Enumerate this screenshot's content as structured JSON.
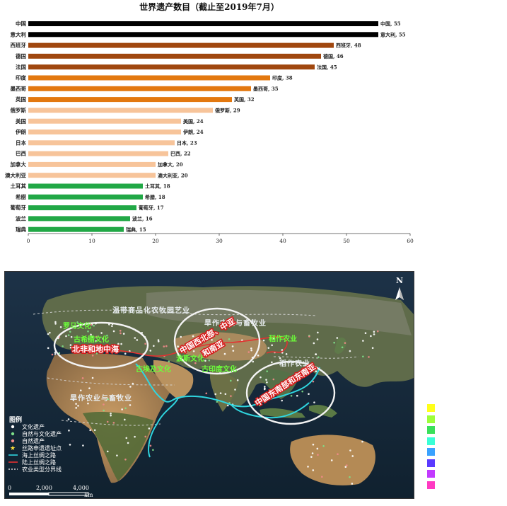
{
  "chart_data": {
    "type": "bar",
    "orientation": "horizontal",
    "title": "世界遗产数目（截止至2019年7月）",
    "categories": [
      "中国",
      "意大利",
      "西班牙",
      "德国",
      "法国",
      "印度",
      "墨西哥",
      "英国",
      "俄罗斯",
      "美国",
      "伊朗",
      "日本",
      "巴西",
      "加拿大",
      "澳大利亚",
      "土耳其",
      "希腊",
      "葡萄牙",
      "波兰",
      "瑞典"
    ],
    "values": [
      55,
      55,
      48,
      46,
      45,
      38,
      35,
      32,
      29,
      24,
      24,
      23,
      22,
      20,
      20,
      18,
      18,
      17,
      16,
      15
    ],
    "value_labels": [
      "中国, 55",
      "意大利, 55",
      "西班牙, 48",
      "德国, 46",
      "法国, 45",
      "印度, 38",
      "墨西哥, 35",
      "英国, 32",
      "俄罗斯, 29",
      "美国, 24",
      "伊朗, 24",
      "日本, 23",
      "巴西, 22",
      "加拿大, 20",
      "澳大利亚, 20",
      "土耳其, 18",
      "希腊, 18",
      "葡萄牙, 17",
      "波兰, 16",
      "瑞典, 15"
    ],
    "colors": [
      "#000000",
      "#000000",
      "#a0470f",
      "#a0470f",
      "#a0470f",
      "#e3780f",
      "#e3780f",
      "#e3780f",
      "#f7c49a",
      "#f7c49a",
      "#f7c49a",
      "#f7c49a",
      "#f7c49a",
      "#f7c49a",
      "#f7c49a",
      "#21a846",
      "#21a846",
      "#21a846",
      "#21a846",
      "#21a846"
    ],
    "xlim": [
      0,
      60
    ],
    "xticks": [
      "0",
      "10",
      "20",
      "30",
      "40",
      "50",
      "60"
    ],
    "grid": false,
    "legend": "none"
  },
  "map": {
    "north_label": "N",
    "labels": {
      "temperate": "温带商品化农牧园艺业",
      "dryland_asia": "旱作农业与畜牧业",
      "dryland_africa": "旱作农业与畜牧业",
      "rice": "稻作农业",
      "east_rice": "稻作农业",
      "roman": "罗马文化",
      "greek": "古希腊文化",
      "egypt": "古埃及文化",
      "persia": "波斯文化",
      "india": "古印度文化",
      "ellipse_west": "北非和地中海",
      "ellipse_center_1": "中国西北部、中亚",
      "ellipse_center_2": "和南亚",
      "ellipse_east": "中国东南部和东南亚"
    },
    "legend": {
      "title": "图例",
      "items": [
        {
          "label": "文化遗产",
          "symbol": "dot",
          "color": "#ffffff"
        },
        {
          "label": "自然与文化遗产",
          "symbol": "dot",
          "color": "#7ee08a"
        },
        {
          "label": "自然遗产",
          "symbol": "dot",
          "color": "#f28a8a"
        },
        {
          "label": "丝路申遗遗址点",
          "symbol": "star",
          "color": "#ffe23a"
        },
        {
          "label": "海上丝绸之路",
          "symbol": "line",
          "color": "#2fd6e0"
        },
        {
          "label": "陆上丝绸之路",
          "symbol": "line",
          "color": "#e53030"
        },
        {
          "label": "农业类型分界线",
          "symbol": "dashed",
          "color": "#d8d8d8"
        }
      ]
    },
    "scale": {
      "ticks": [
        "0",
        "2,000",
        "4,000"
      ],
      "unit": "km"
    }
  },
  "swatch_colors": [
    "#ffff1a",
    "#9dff3a",
    "#3ae05a",
    "#3affd6",
    "#3aa2ff",
    "#5a3aff",
    "#c23aff",
    "#ff3ac2"
  ]
}
